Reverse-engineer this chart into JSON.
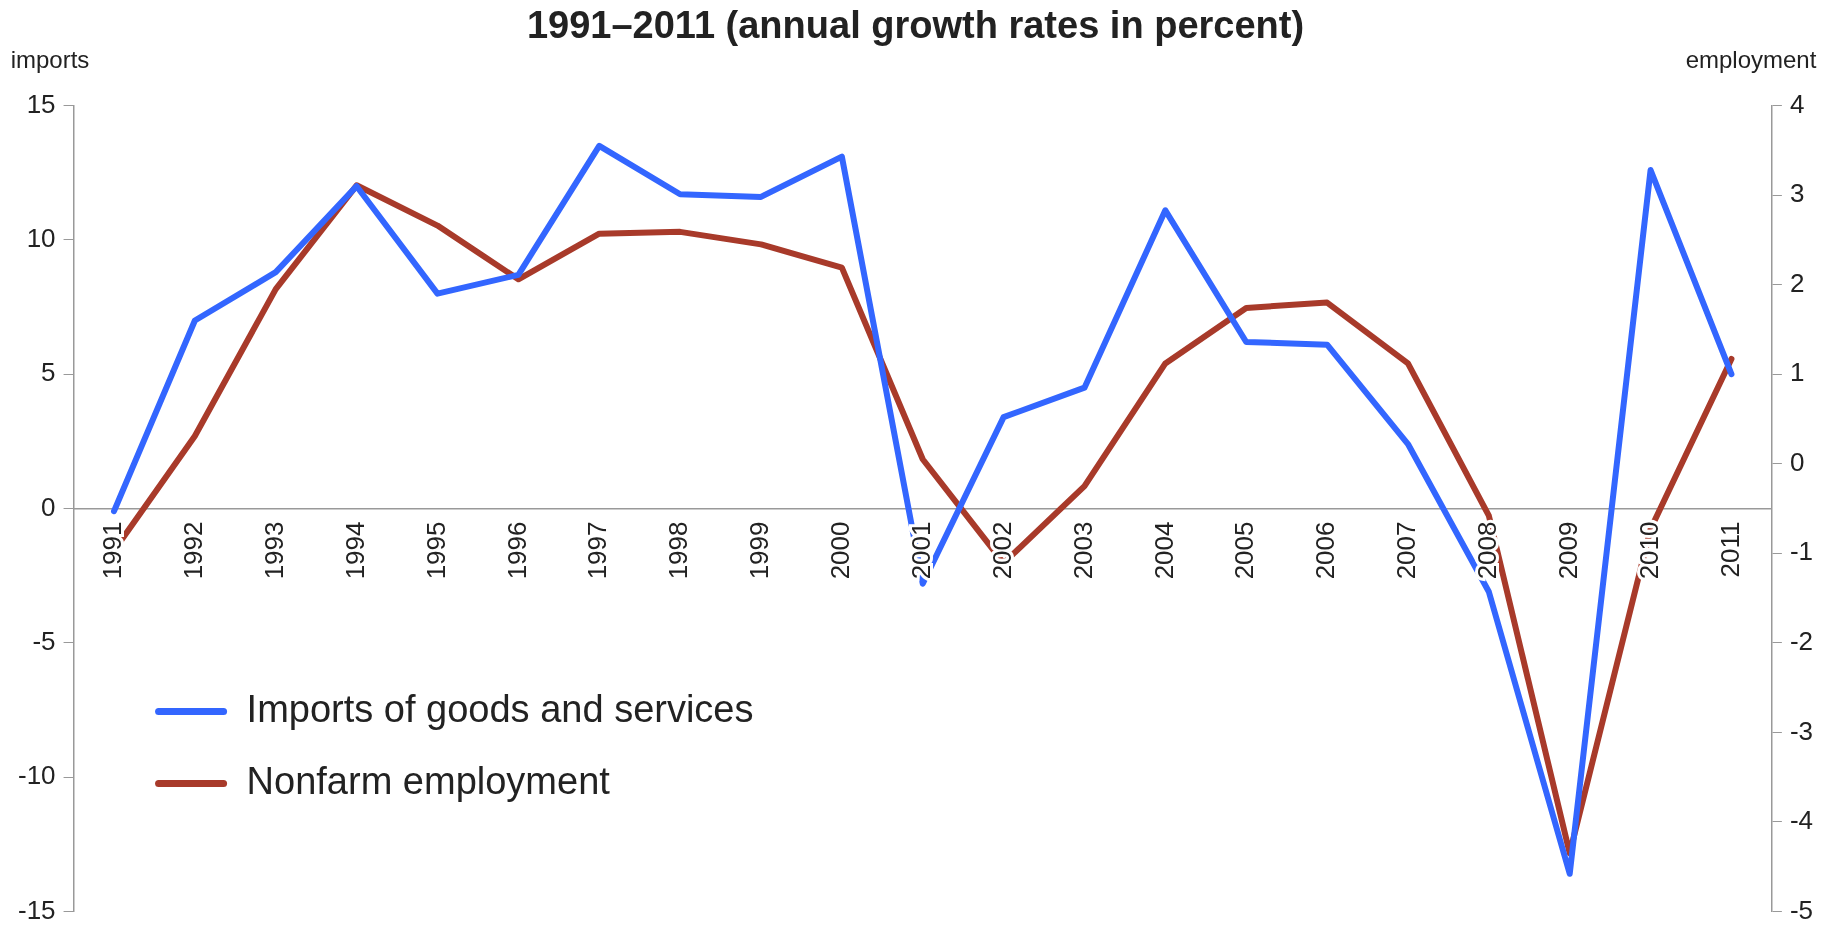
{
  "chart_data": {
    "type": "line",
    "title": "1991–2011 (annual growth rates in percent)",
    "ylabel": "imports",
    "y2label": "employment",
    "categories": [
      "1991",
      "1992",
      "1993",
      "1994",
      "1995",
      "1996",
      "1997",
      "1998",
      "1999",
      "2000",
      "2001",
      "2002",
      "2003",
      "2004",
      "2005",
      "2006",
      "2007",
      "2008",
      "2009",
      "2010",
      "2011"
    ],
    "series": [
      {
        "name": "Imports of goods and services",
        "color": "#3366ff",
        "values": [
          -0.1,
          7.0,
          8.8,
          12.0,
          8.0,
          8.7,
          13.5,
          11.7,
          11.6,
          13.1,
          -2.8,
          3.4,
          4.5,
          11.1,
          6.2,
          6.1,
          2.4,
          -3.1,
          -13.6,
          12.6,
          5.0
        ]
      },
      {
        "name": "Nonfarm employment",
        "color": "#a83a2a",
        "axis": "y2",
        "values": [
          -0.97,
          0.31,
          1.95,
          3.11,
          2.66,
          2.06,
          2.57,
          2.59,
          2.45,
          2.19,
          0.05,
          -1.11,
          -0.25,
          1.12,
          1.74,
          1.8,
          1.12,
          -0.58,
          -4.35,
          -0.73,
          1.17
        ]
      }
    ],
    "ylim": [
      -15,
      15
    ],
    "yticks": [
      -15,
      -10,
      -5,
      0,
      5,
      10,
      15
    ],
    "y2lim": [
      -5,
      4
    ],
    "y2ticks": [
      -5,
      -4,
      -3,
      -2,
      -1,
      0,
      1,
      2,
      3,
      4
    ],
    "grid": false,
    "legend": "bottom left",
    "marker": "none",
    "line_style": "solid"
  }
}
